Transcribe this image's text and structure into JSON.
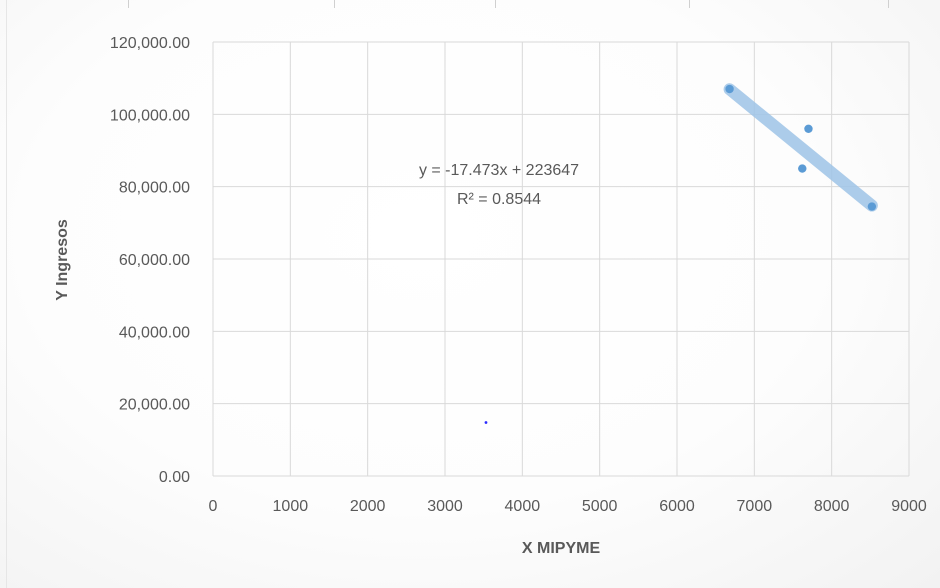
{
  "chart_data": {
    "type": "scatter",
    "xlabel": "X MIPYME",
    "ylabel": "Y Ingresos",
    "xlim": [
      0,
      9000
    ],
    "ylim": [
      0,
      120000
    ],
    "x_ticks": [
      "0",
      "1000",
      "2000",
      "3000",
      "4000",
      "5000",
      "6000",
      "7000",
      "8000",
      "9000"
    ],
    "y_ticks": [
      "0.00",
      "20,000.00",
      "40,000.00",
      "60,000.00",
      "80,000.00",
      "100,000.00",
      "120,000.00"
    ],
    "grid": true,
    "series": [
      {
        "values": [
          {
            "x": 6680,
            "y": 107000
          },
          {
            "x": 7700,
            "y": 96000
          },
          {
            "x": 7620,
            "y": 85000
          },
          {
            "x": 8520,
            "y": 74500
          }
        ],
        "color": "#5b9bd5"
      }
    ],
    "stray_point": {
      "x": 3530,
      "y": 14800,
      "color": "#2a2aff"
    },
    "trendline": {
      "slope": -17.473,
      "intercept": 223647,
      "x_range": [
        6680,
        8520
      ],
      "color": "#9dc3e6",
      "equation": "y = -17.473x + 223647",
      "r_squared": "R² = 0.8544"
    }
  }
}
